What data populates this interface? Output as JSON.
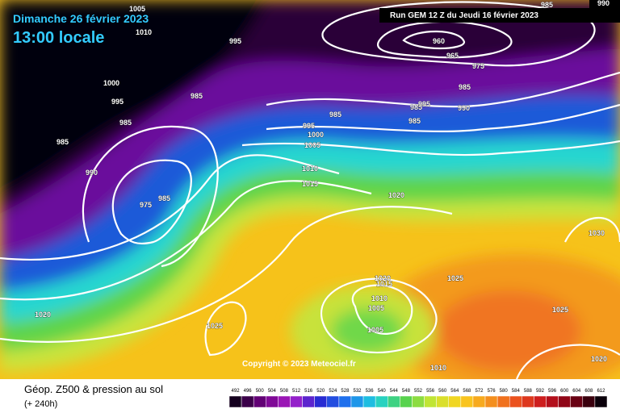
{
  "header": {
    "date": "Dimanche 26 février 2023",
    "time": "13:00 locale",
    "run": "Run GEM 12 Z du Jeudi 16 février 2023",
    "corner_label": "990"
  },
  "footer": {
    "title": "Géop. Z500 & pression au sol",
    "lead": "(+ 240h)",
    "copyright": "Copyright © 2023 Meteociel.fr"
  },
  "isobar_labels": [
    "1005",
    "1010",
    "995",
    "1000",
    "995",
    "985",
    "985",
    "985",
    "990",
    "975",
    "985",
    "960",
    "965",
    "975",
    "985",
    "985",
    "985",
    "995",
    "990",
    "985",
    "995",
    "1000",
    "1005",
    "1010",
    "1015",
    "1020",
    "985",
    "1030",
    "1020",
    "1015",
    "1025",
    "1010",
    "1005",
    "1025",
    "1025",
    "1020",
    "1005",
    "1010",
    "1020"
  ],
  "scale": [
    "492",
    "496",
    "500",
    "504",
    "508",
    "512",
    "516",
    "520",
    "524",
    "528",
    "532",
    "536",
    "540",
    "544",
    "548",
    "552",
    "556",
    "560",
    "564",
    "568",
    "572",
    "576",
    "580",
    "584",
    "588",
    "592",
    "596",
    "600",
    "604",
    "608",
    "612"
  ]
}
